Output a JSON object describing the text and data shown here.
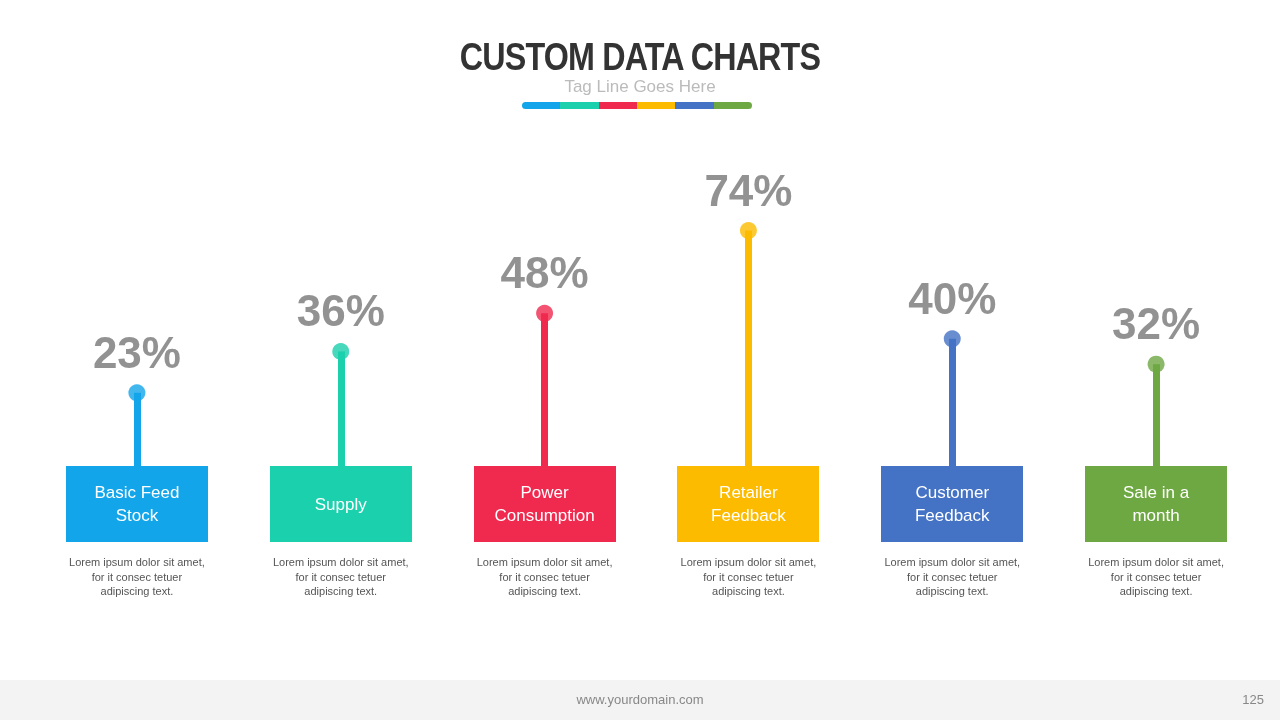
{
  "chart_data": {
    "type": "lollipop",
    "title": "CUSTOM DATA CHARTS",
    "subtitle": "Tag Line Goes Here",
    "categories": [
      "Basic Feed Stock",
      "Supply",
      "Power Consumption",
      "Retailer Feedback",
      "Customer Feedback",
      "Sale in a month"
    ],
    "values": [
      23,
      36,
      48,
      74,
      40,
      32
    ],
    "value_labels": [
      "23%",
      "36%",
      "48%",
      "74%",
      "40%",
      "32%"
    ],
    "colors": [
      "#12a5ea",
      "#1ad0ad",
      "#f0294f",
      "#fdbb00",
      "#4472c4",
      "#6ea843"
    ],
    "marker": "circle",
    "annotations": [
      "Lorem ipsum dolor sit amet, for it consec tetuer adipiscing text.",
      "Lorem ipsum dolor sit amet, for it consec tetuer adipiscing text.",
      "Lorem ipsum dolor sit amet, for it consec tetuer adipiscing text.",
      "Lorem ipsum dolor sit amet, for it consec tetuer adipiscing text.",
      "Lorem ipsum dolor sit amet, for it consec tetuer adipiscing text.",
      "Lorem ipsum dolor sit amet, for it consec tetuer adipiscing text.",
      "www.yourdomain.com",
      "125"
    ]
  }
}
